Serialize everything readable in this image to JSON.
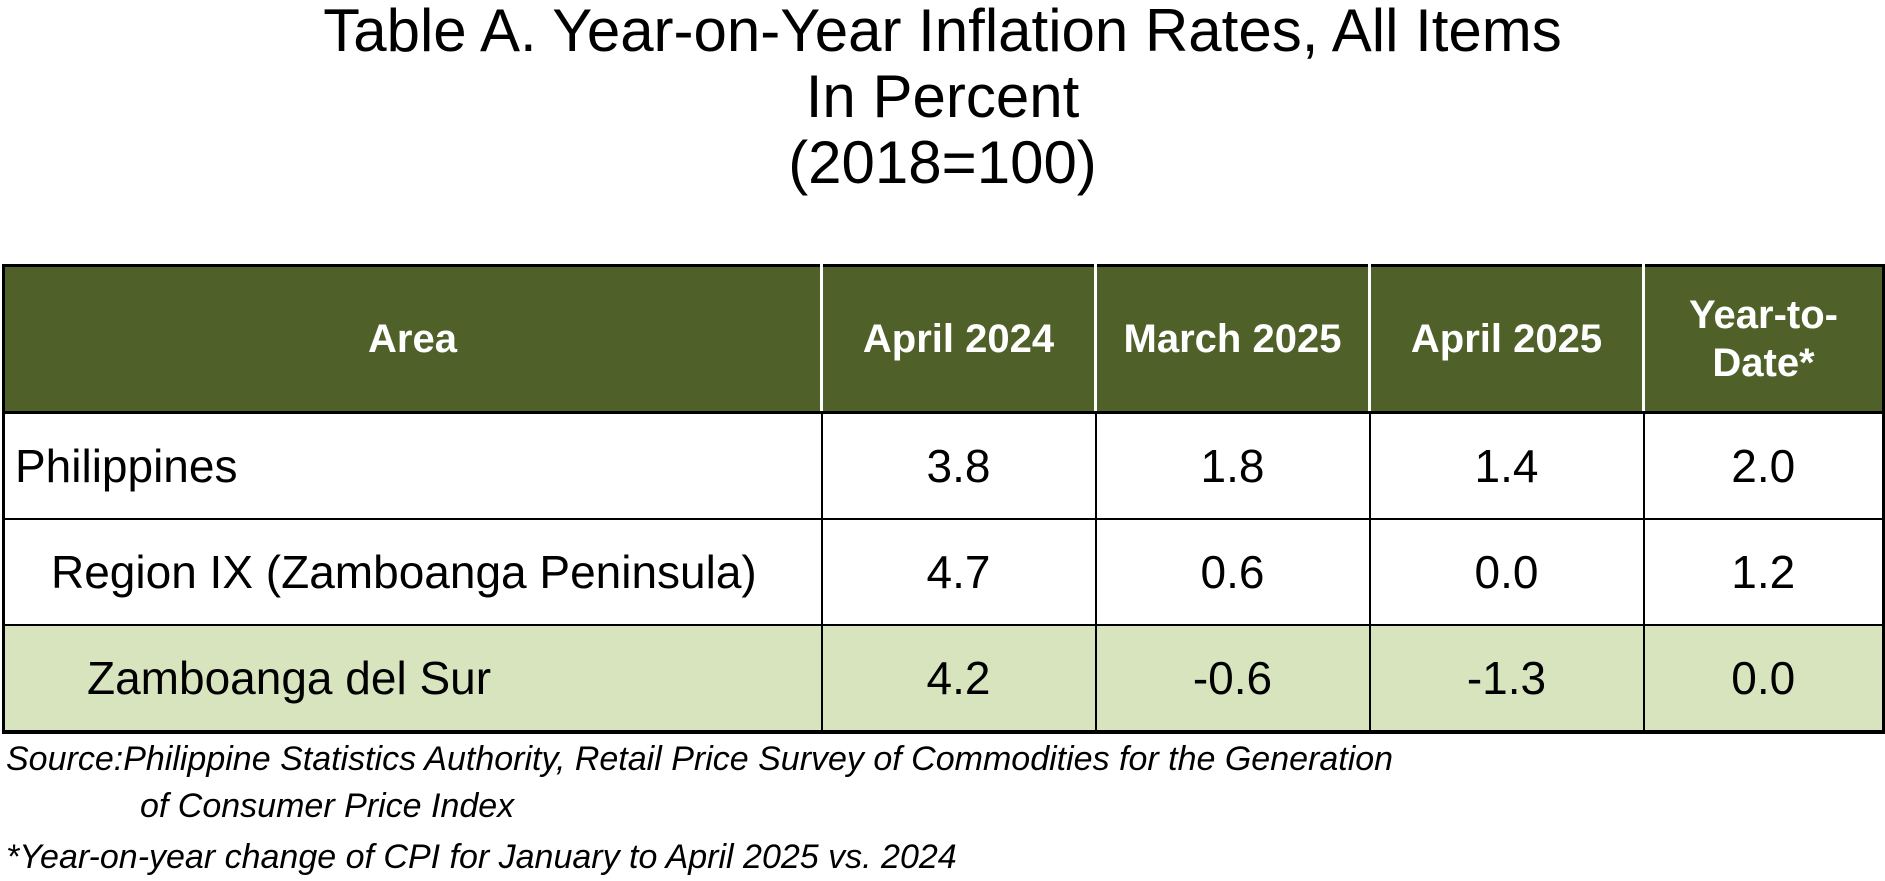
{
  "title": {
    "line1": "Table A.  Year-on-Year Inflation Rates, All Items",
    "line2": "In Percent",
    "line3": "(2018=100)"
  },
  "table": {
    "headers": {
      "area": "Area",
      "col1": "April 2024",
      "col2": "March 2025",
      "col3": "April 2025",
      "col4_line1": "Year-to-",
      "col4_line2": "Date*"
    },
    "rows": [
      {
        "area": "Philippines",
        "v1": "3.8",
        "v2": "1.8",
        "v3": "1.4",
        "v4": "2.0"
      },
      {
        "area": "Region IX (Zamboanga Peninsula)",
        "v1": "4.7",
        "v2": "0.6",
        "v3": "0.0",
        "v4": "1.2"
      },
      {
        "area": "Zamboanga del Sur",
        "v1": "4.2",
        "v2": "-0.6",
        "v3": "-1.3",
        "v4": "0.0"
      }
    ],
    "colors": {
      "header_bg": "#4f6128",
      "header_text": "#ffffff",
      "highlight_row_bg": "#d7e4bd"
    }
  },
  "notes": {
    "source_label": "Source: ",
    "source_line1": "Philippine Statistics Authority, Retail Price Survey of Commodities for the Generation",
    "source_line2": "of Consumer Price Index",
    "ytd_note": "*Year-on-year change of CPI for January to April 2025 vs. 2024"
  }
}
